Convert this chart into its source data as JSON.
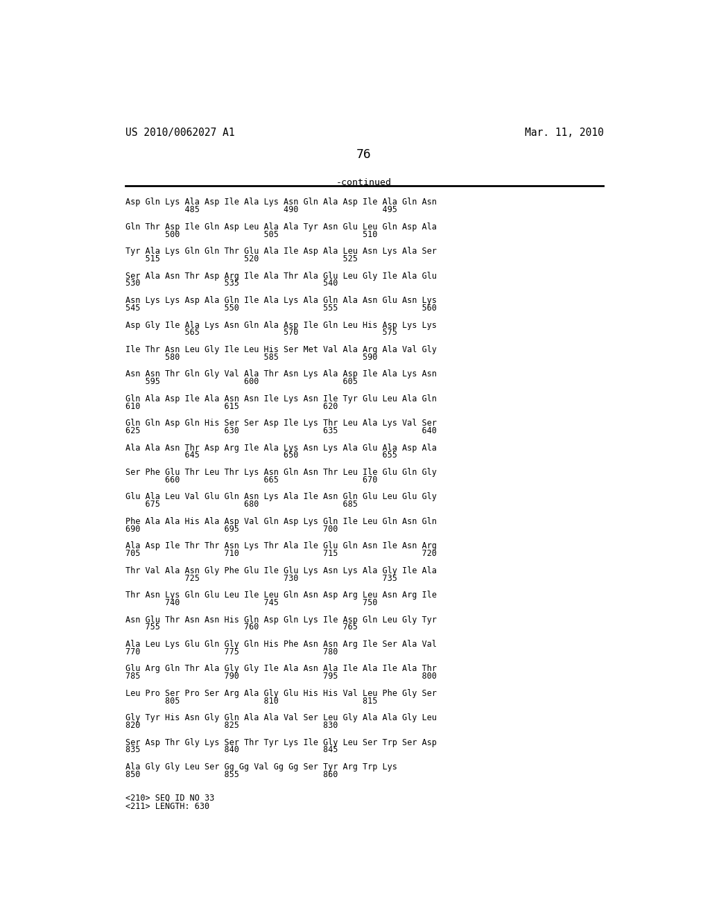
{
  "header_left": "US 2010/0062027 A1",
  "header_right": "Mar. 11, 2010",
  "page_number": "76",
  "continued_label": "-continued",
  "background_color": "#ffffff",
  "text_color": "#000000",
  "sequence_blocks": [
    [
      "Asp Gln Lys Ala Asp Ile Ala Lys Asn Gln Ala Asp Ile Ala Gln Asn",
      "            485                 490                 495"
    ],
    [
      "Gln Thr Asp Ile Gln Asp Leu Ala Ala Tyr Asn Glu Leu Gln Asp Ala",
      "        500                 505                 510"
    ],
    [
      "Tyr Ala Lys Gln Gln Thr Glu Ala Ile Asp Ala Leu Asn Lys Ala Ser",
      "    515                 520                 525"
    ],
    [
      "Ser Ala Asn Thr Asp Arg Ile Ala Thr Ala Glu Leu Gly Ile Ala Glu",
      "530                 535                 540"
    ],
    [
      "Asn Lys Lys Asp Ala Gln Ile Ala Lys Ala Gln Ala Asn Glu Asn Lys",
      "545                 550                 555                 560"
    ],
    [
      "Asp Gly Ile Ala Lys Asn Gln Ala Asp Ile Gln Leu His Asp Lys Lys",
      "            565                 570                 575"
    ],
    [
      "Ile Thr Asn Leu Gly Ile Leu His Ser Met Val Ala Arg Ala Val Gly",
      "        580                 585                 590"
    ],
    [
      "Asn Asn Thr Gln Gly Val Ala Thr Asn Lys Ala Asp Ile Ala Lys Asn",
      "    595                 600                 605"
    ],
    [
      "Gln Ala Asp Ile Ala Asn Asn Ile Lys Asn Ile Tyr Glu Leu Ala Gln",
      "610                 615                 620"
    ],
    [
      "Gln Gln Asp Gln His Ser Ser Asp Ile Lys Thr Leu Ala Lys Val Ser",
      "625                 630                 635                 640"
    ],
    [
      "Ala Ala Asn Thr Asp Arg Ile Ala Lys Asn Lys Ala Glu Ala Asp Ala",
      "            645                 650                 655"
    ],
    [
      "Ser Phe Glu Thr Leu Thr Lys Asn Gln Asn Thr Leu Ile Glu Gln Gly",
      "        660                 665                 670"
    ],
    [
      "Glu Ala Leu Val Glu Gln Asn Lys Ala Ile Asn Gln Glu Leu Glu Gly",
      "    675                 680                 685"
    ],
    [
      "Phe Ala Ala His Ala Asp Val Gln Asp Lys Gln Ile Leu Gln Asn Gln",
      "690                 695                 700"
    ],
    [
      "Ala Asp Ile Thr Thr Asn Lys Thr Ala Ile Glu Gln Asn Ile Asn Arg",
      "705                 710                 715                 720"
    ],
    [
      "Thr Val Ala Asn Gly Phe Glu Ile Glu Lys Asn Lys Ala Gly Ile Ala",
      "            725                 730                 735"
    ],
    [
      "Thr Asn Lys Gln Glu Leu Ile Leu Gln Asn Asp Arg Leu Asn Arg Ile",
      "        740                 745                 750"
    ],
    [
      "Asn Glu Thr Asn Asn His Gln Asp Gln Lys Ile Asp Gln Leu Gly Tyr",
      "    755                 760                 765"
    ],
    [
      "Ala Leu Lys Glu Gln Gly Gln His Phe Asn Asn Arg Ile Ser Ala Val",
      "770                 775                 780"
    ],
    [
      "Glu Arg Gln Thr Ala Gly Gly Ile Ala Asn Ala Ile Ala Ile Ala Thr",
      "785                 790                 795                 800"
    ],
    [
      "Leu Pro Ser Pro Ser Arg Ala Gly Glu His His Val Leu Phe Gly Ser",
      "        805                 810                 815"
    ],
    [
      "Gly Tyr His Asn Gly Gln Ala Ala Val Ser Leu Gly Ala Ala Gly Leu",
      "820                 825                 830"
    ],
    [
      "Ser Asp Thr Gly Lys Ser Thr Tyr Lys Ile Gly Leu Ser Trp Ser Asp",
      "835                 840                 845"
    ],
    [
      "Ala Gly Gly Leu Ser Gg Gg Val Gg Gg Ser Tyr Arg Trp Lys",
      "850                 855                 860"
    ]
  ],
  "footer_lines": [
    "<210> SEQ ID NO 33",
    "<211> LENGTH: 630"
  ]
}
